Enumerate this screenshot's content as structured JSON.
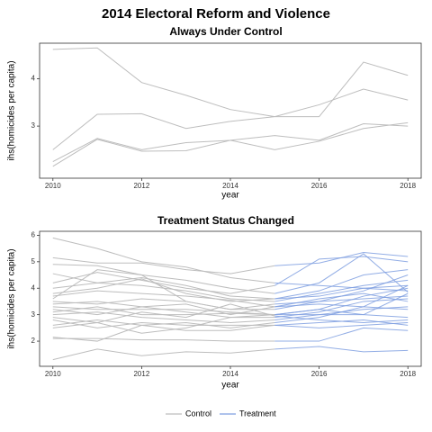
{
  "title": "2014 Electoral Reform and Violence",
  "chart_data": [
    {
      "type": "line",
      "title": "Always Under Control",
      "xlabel": "year",
      "ylabel": "ihs(homicides per capita)",
      "xlim": [
        2009.7,
        2018.3
      ],
      "ylim": [
        1.9,
        4.75
      ],
      "x_ticks": [
        2010,
        2012,
        2014,
        2016,
        2018
      ],
      "y_ticks": [
        3,
        4
      ],
      "grid": false,
      "x": [
        2010,
        2011,
        2012,
        2013,
        2014,
        2015,
        2016,
        2017,
        2018
      ],
      "series": [
        {
          "group": "Control",
          "values": [
            4.62,
            4.65,
            3.92,
            3.65,
            3.35,
            3.2,
            3.2,
            4.35,
            4.07
          ]
        },
        {
          "group": "Control",
          "values": [
            2.5,
            3.25,
            3.26,
            2.95,
            3.1,
            3.2,
            3.45,
            3.78,
            3.55
          ]
        },
        {
          "group": "Control",
          "values": [
            2.25,
            2.74,
            2.5,
            2.65,
            2.7,
            2.8,
            2.7,
            3.05,
            3.0
          ]
        },
        {
          "group": "Control",
          "values": [
            2.15,
            2.72,
            2.47,
            2.48,
            2.7,
            2.5,
            2.68,
            2.95,
            3.07
          ]
        }
      ]
    },
    {
      "type": "line",
      "title": "Treatment Status Changed",
      "xlabel": "year",
      "ylabel": "ihs(homicides per capita)",
      "xlim": [
        2009.7,
        2018.3
      ],
      "ylim": [
        1.05,
        6.15
      ],
      "x_ticks": [
        2010,
        2012,
        2014,
        2016,
        2018
      ],
      "y_ticks": [
        2,
        3,
        4,
        5,
        6
      ],
      "grid": false,
      "switch_year": 2015,
      "x": [
        2010,
        2011,
        2012,
        2013,
        2014,
        2015,
        2016,
        2017,
        2018
      ],
      "series": [
        {
          "values": [
            5.9,
            5.5,
            5.0,
            4.8,
            4.4,
            4.2,
            4.1,
            4.0,
            3.9
          ]
        },
        {
          "values": [
            5.15,
            4.95,
            4.95,
            4.7,
            4.55,
            4.85,
            4.95,
            5.35,
            5.2
          ]
        },
        {
          "values": [
            4.9,
            4.85,
            4.5,
            4.3,
            4.0,
            3.8,
            4.2,
            5.3,
            3.85
          ]
        },
        {
          "values": [
            4.55,
            4.2,
            4.4,
            4.1,
            3.7,
            3.6,
            3.9,
            4.5,
            4.7
          ]
        },
        {
          "values": [
            4.2,
            4.6,
            4.3,
            4.0,
            3.8,
            4.1,
            5.1,
            5.2,
            5.0
          ]
        },
        {
          "values": [
            4.0,
            4.2,
            4.1,
            3.9,
            3.6,
            3.5,
            3.8,
            4.1,
            4.3
          ]
        },
        {
          "values": [
            3.8,
            4.0,
            4.35,
            3.8,
            3.5,
            3.6,
            3.7,
            4.0,
            4.1
          ]
        },
        {
          "values": [
            3.7,
            3.9,
            3.8,
            3.7,
            3.55,
            3.3,
            3.6,
            3.8,
            3.5
          ]
        },
        {
          "values": [
            3.6,
            4.7,
            4.5,
            3.5,
            3.2,
            3.4,
            3.5,
            3.6,
            3.7
          ]
        },
        {
          "values": [
            3.5,
            3.4,
            3.6,
            3.5,
            3.2,
            3.2,
            3.5,
            3.9,
            4.5
          ]
        },
        {
          "values": [
            3.4,
            3.5,
            3.3,
            3.4,
            3.0,
            3.3,
            3.4,
            3.3,
            3.2
          ]
        },
        {
          "values": [
            3.3,
            3.2,
            3.2,
            3.2,
            3.1,
            3.0,
            3.2,
            3.7,
            4.0
          ]
        },
        {
          "values": [
            3.2,
            3.0,
            3.3,
            3.1,
            2.9,
            2.9,
            3.1,
            3.5,
            3.6
          ]
        },
        {
          "values": [
            3.1,
            3.3,
            3.0,
            3.0,
            3.05,
            3.0,
            3.0,
            3.2,
            3.3
          ]
        },
        {
          "values": [
            3.0,
            3.1,
            2.9,
            2.8,
            2.7,
            2.8,
            3.0,
            3.0,
            2.9
          ]
        },
        {
          "values": [
            2.9,
            2.7,
            3.1,
            2.9,
            3.4,
            2.95,
            2.8,
            2.7,
            2.8
          ]
        },
        {
          "values": [
            2.8,
            2.5,
            2.7,
            2.6,
            2.6,
            2.6,
            2.7,
            2.8,
            2.6
          ]
        },
        {
          "values": [
            2.6,
            2.8,
            2.6,
            2.4,
            2.4,
            2.6,
            2.5,
            2.6,
            2.7
          ]
        },
        {
          "values": [
            2.5,
            2.7,
            2.3,
            2.5,
            2.9,
            3.0,
            3.2,
            3.0,
            3.8
          ]
        },
        {
          "values": [
            2.15,
            2.0,
            2.6,
            2.7,
            2.5,
            2.7,
            2.9,
            3.3,
            4.1
          ]
        },
        {
          "values": [
            2.1,
            2.1,
            2.05,
            2.05,
            2.0,
            2.0,
            2.0,
            2.5,
            2.4
          ]
        },
        {
          "values": [
            1.3,
            1.7,
            1.45,
            1.6,
            1.55,
            1.7,
            1.8,
            1.6,
            1.65
          ]
        }
      ]
    }
  ],
  "legend": {
    "position": "bottom",
    "items": [
      {
        "label": "Control",
        "color": "#bdbdbd"
      },
      {
        "label": "Treatment",
        "color": "#7f9fe0"
      }
    ]
  },
  "colors": {
    "control": "#bdbdbd",
    "treatment": "#7f9fe0",
    "border": "#333333"
  }
}
